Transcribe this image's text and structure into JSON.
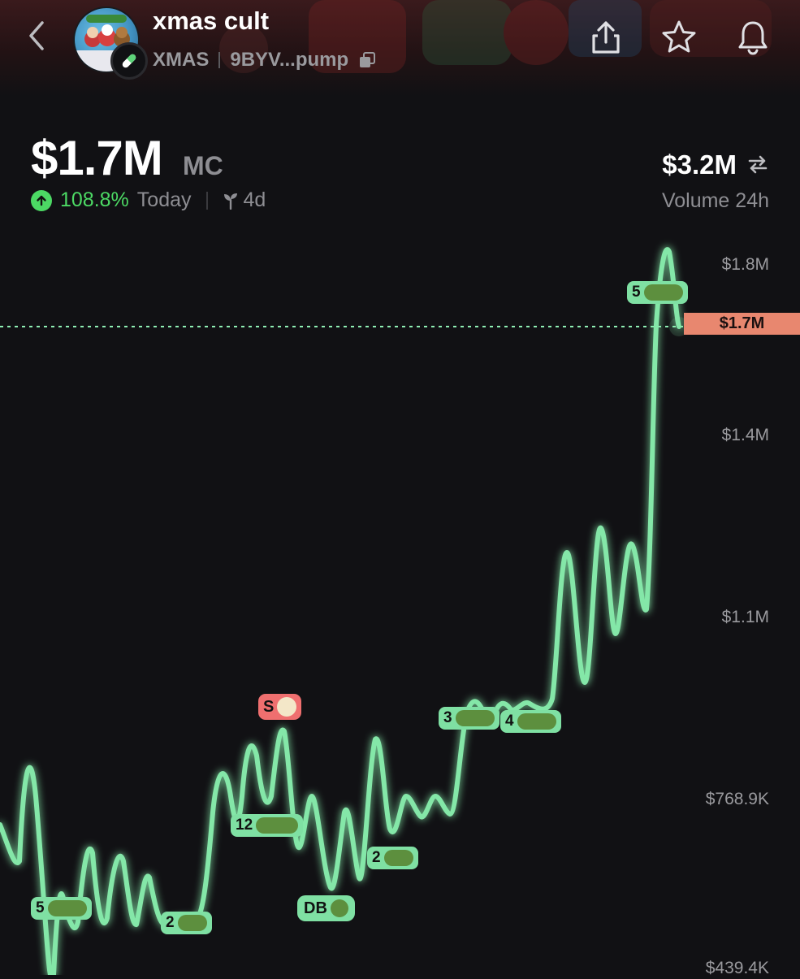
{
  "header": {
    "title": "xmas cult",
    "ticker": "XMAS",
    "address": "9BYV...pump"
  },
  "stats": {
    "market_cap": "$1.7M",
    "mc_label": "MC",
    "change_pct": "108.8%",
    "change_period": "Today",
    "age": "4d",
    "volume": "$3.2M",
    "volume_label": "Volume 24h"
  },
  "chart": {
    "current_price_label": "$1.7M",
    "y_labels": [
      "$1.8M",
      "$1.4M",
      "$1.1M",
      "$768.9K",
      "$439.4K"
    ],
    "line_color": "#7fe0a3",
    "current_tag_color": "#e8876f",
    "sell_marker_color": "#ef6f6f",
    "markers": [
      {
        "label": "5",
        "kind": "buy"
      },
      {
        "label": "2",
        "kind": "buy"
      },
      {
        "label": "12",
        "kind": "buy"
      },
      {
        "label": "DB",
        "kind": "buy"
      },
      {
        "label": "2",
        "kind": "buy"
      },
      {
        "label": "3",
        "kind": "buy"
      },
      {
        "label": "4",
        "kind": "buy"
      },
      {
        "label": "5",
        "kind": "buy"
      },
      {
        "label": "S",
        "kind": "sell"
      }
    ]
  },
  "icons": {
    "back": "chevron-left-icon",
    "share": "share-icon",
    "favorite": "star-icon",
    "notify": "bell-icon",
    "copy": "copy-icon",
    "swap": "swap-icon",
    "up": "arrow-up-icon",
    "age": "sprout-icon",
    "platform": "pill-icon"
  }
}
